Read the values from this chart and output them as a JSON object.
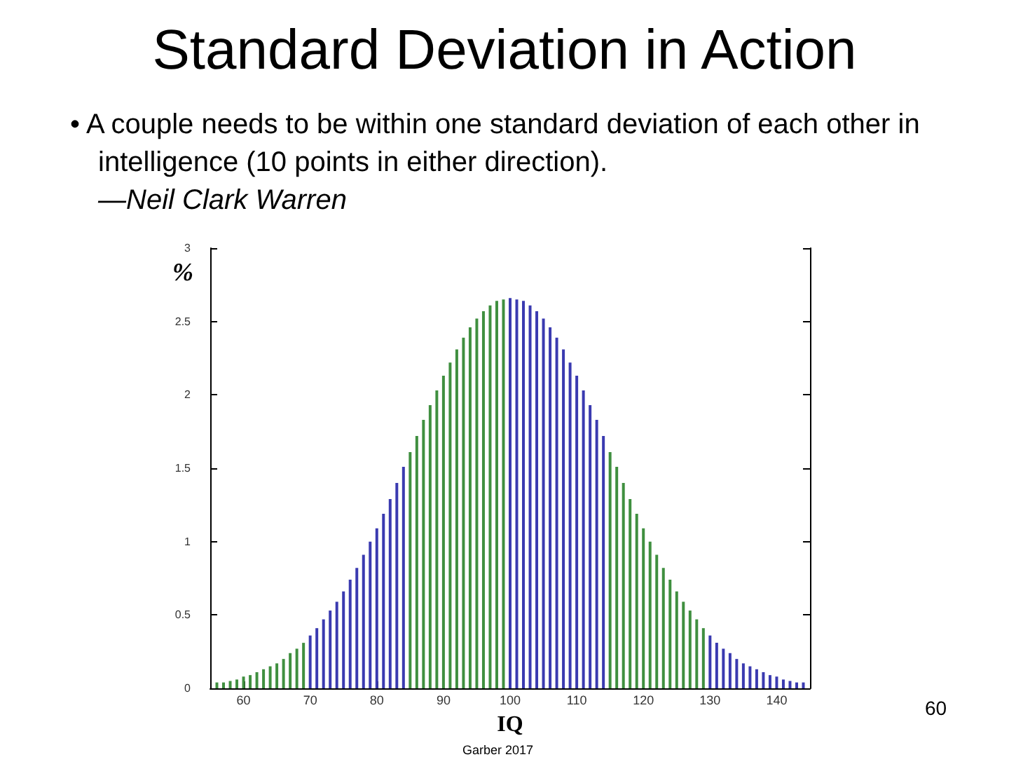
{
  "chart_data": {
    "type": "bar",
    "title": "Standard Deviation in Action",
    "subtitle": "• A couple needs to be within one standard deviation of each other in intelligence (10 points in either direction).",
    "annotations": [
      "—Neil Clark Warren",
      "Garber 2017",
      "60"
    ],
    "xlabel": "IQ",
    "ylabel": "%",
    "x": [
      56,
      57,
      58,
      59,
      60,
      61,
      62,
      63,
      64,
      65,
      66,
      67,
      68,
      69,
      70,
      71,
      72,
      73,
      74,
      75,
      76,
      77,
      78,
      79,
      80,
      81,
      82,
      83,
      84,
      85,
      86,
      87,
      88,
      89,
      90,
      91,
      92,
      93,
      94,
      95,
      96,
      97,
      98,
      99,
      100,
      101,
      102,
      103,
      104,
      105,
      106,
      107,
      108,
      109,
      110,
      111,
      112,
      113,
      114,
      115,
      116,
      117,
      118,
      119,
      120,
      121,
      122,
      123,
      124,
      125,
      126,
      127,
      128,
      129,
      130,
      131,
      132,
      133,
      134,
      135,
      136,
      137,
      138,
      139,
      140,
      141,
      142,
      143,
      144
    ],
    "values": [
      0.04,
      0.04,
      0.05,
      0.06,
      0.08,
      0.09,
      0.11,
      0.13,
      0.15,
      0.17,
      0.2,
      0.24,
      0.27,
      0.31,
      0.36,
      0.41,
      0.47,
      0.53,
      0.59,
      0.66,
      0.74,
      0.82,
      0.91,
      1.0,
      1.09,
      1.19,
      1.29,
      1.4,
      1.51,
      1.61,
      1.72,
      1.83,
      1.93,
      2.03,
      2.13,
      2.22,
      2.31,
      2.39,
      2.46,
      2.52,
      2.57,
      2.61,
      2.64,
      2.65,
      2.66,
      2.65,
      2.64,
      2.61,
      2.57,
      2.52,
      2.46,
      2.39,
      2.31,
      2.22,
      2.13,
      2.03,
      1.93,
      1.83,
      1.72,
      1.61,
      1.51,
      1.4,
      1.29,
      1.19,
      1.09,
      1.0,
      0.91,
      0.82,
      0.74,
      0.66,
      0.59,
      0.53,
      0.47,
      0.41,
      0.36,
      0.31,
      0.27,
      0.24,
      0.2,
      0.17,
      0.15,
      0.13,
      0.11,
      0.09,
      0.08,
      0.06,
      0.05,
      0.04,
      0.04
    ],
    "colors": [
      "#3f8f3f",
      "#3f8f3f",
      "#3f8f3f",
      "#3f8f3f",
      "#3f8f3f",
      "#3f8f3f",
      "#3f8f3f",
      "#3f8f3f",
      "#3f8f3f",
      "#3f8f3f",
      "#3f8f3f",
      "#3f8f3f",
      "#3f8f3f",
      "#3f8f3f",
      "#3a3ab0",
      "#3a3ab0",
      "#3a3ab0",
      "#3a3ab0",
      "#3a3ab0",
      "#3a3ab0",
      "#3a3ab0",
      "#3a3ab0",
      "#3a3ab0",
      "#3a3ab0",
      "#3a3ab0",
      "#3a3ab0",
      "#3a3ab0",
      "#3a3ab0",
      "#3a3ab0",
      "#3f8f3f",
      "#3f8f3f",
      "#3f8f3f",
      "#3f8f3f",
      "#3f8f3f",
      "#3f8f3f",
      "#3f8f3f",
      "#3f8f3f",
      "#3f8f3f",
      "#3f8f3f",
      "#3f8f3f",
      "#3f8f3f",
      "#3f8f3f",
      "#3f8f3f",
      "#3f8f3f",
      "#3a3ab0",
      "#3a3ab0",
      "#3a3ab0",
      "#3a3ab0",
      "#3a3ab0",
      "#3a3ab0",
      "#3a3ab0",
      "#3a3ab0",
      "#3a3ab0",
      "#3a3ab0",
      "#3a3ab0",
      "#3a3ab0",
      "#3a3ab0",
      "#3a3ab0",
      "#3a3ab0",
      "#3f8f3f",
      "#3f8f3f",
      "#3f8f3f",
      "#3f8f3f",
      "#3f8f3f",
      "#3f8f3f",
      "#3f8f3f",
      "#3f8f3f",
      "#3f8f3f",
      "#3f8f3f",
      "#3f8f3f",
      "#3f8f3f",
      "#3f8f3f",
      "#3f8f3f",
      "#3f8f3f",
      "#3a3ab0",
      "#3a3ab0",
      "#3a3ab0",
      "#3a3ab0",
      "#3a3ab0",
      "#3a3ab0",
      "#3a3ab0",
      "#3a3ab0",
      "#3a3ab0",
      "#3a3ab0",
      "#3a3ab0",
      "#3a3ab0",
      "#3a3ab0",
      "#3a3ab0",
      "#3a3ab0"
    ],
    "xlim": [
      55,
      145
    ],
    "xticks": [
      60,
      70,
      80,
      90,
      100,
      110,
      120,
      130,
      140
    ],
    "ylim": [
      0,
      3
    ],
    "yticks": [
      0,
      0.5,
      1,
      1.5,
      2,
      2.5,
      3
    ],
    "grid": false
  }
}
